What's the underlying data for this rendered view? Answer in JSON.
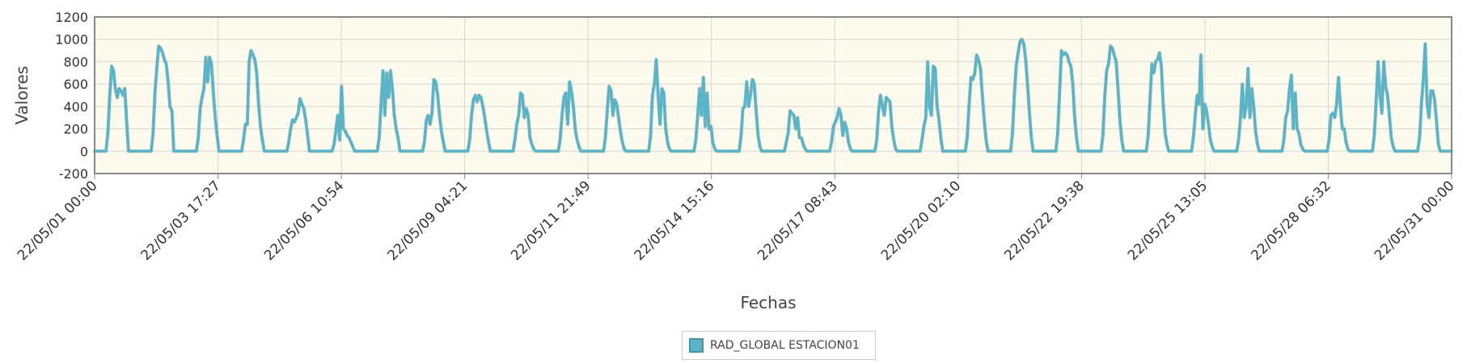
{
  "chart_data": {
    "type": "line",
    "title": "",
    "xlabel": "Fechas",
    "ylabel": "Valores",
    "ylim": [
      -200,
      1200
    ],
    "yticks": [
      "1200",
      "1000",
      "800",
      "600",
      "400",
      "200",
      "0",
      "-200"
    ],
    "xlim": [
      "22/05/01 00:00",
      "22/05/31 00:00"
    ],
    "xticks": [
      "22/05/01 00:00",
      "22/05/03 17:27",
      "22/05/06 10:54",
      "22/05/09 04:21",
      "22/05/11 21:49",
      "22/05/14 15:16",
      "22/05/17 08:43",
      "22/05/20 02:10",
      "22/05/22 19:38",
      "22/05/25 13:05",
      "22/05/28 06:32",
      "22/05/31 00:00"
    ],
    "grid": true,
    "legend_position": "bottom-center",
    "colors": {
      "series": "#5ab4c8",
      "plot_bg": "#fdfbee",
      "grid": "#d6d6d6",
      "frame": "#888888"
    },
    "series": [
      {
        "name": "RAD_GLOBAL ESTACION01",
        "daily": [
          {
            "date": "22/05/01",
            "values": [
              0,
              0,
              0,
              0,
              0,
              0,
              0,
              150,
              480,
              760,
              720,
              560,
              480,
              560,
              540,
              500,
              560,
              260,
              0,
              0,
              0,
              0,
              0,
              0
            ]
          },
          {
            "date": "22/05/02",
            "values": [
              0,
              0,
              0,
              0,
              0,
              0,
              0,
              150,
              520,
              740,
              940,
              920,
              880,
              820,
              780,
              620,
              400,
              360,
              0,
              0,
              0,
              0,
              0,
              0
            ]
          },
          {
            "date": "22/05/03",
            "values": [
              0,
              0,
              0,
              0,
              0,
              0,
              0,
              120,
              380,
              480,
              560,
              840,
              620,
              840,
              780,
              520,
              300,
              140,
              0,
              0,
              0,
              0,
              0,
              0
            ]
          },
          {
            "date": "22/05/04",
            "values": [
              0,
              0,
              0,
              0,
              0,
              0,
              0,
              100,
              240,
              240,
              800,
              900,
              860,
              820,
              700,
              420,
              220,
              100,
              0,
              0,
              0,
              0,
              0,
              0
            ]
          },
          {
            "date": "22/05/05",
            "values": [
              0,
              0,
              0,
              0,
              0,
              0,
              0,
              80,
              200,
              280,
              260,
              300,
              340,
              470,
              420,
              380,
              280,
              140,
              0,
              0,
              0,
              0,
              0,
              0
            ]
          },
          {
            "date": "22/05/06",
            "values": [
              0,
              0,
              0,
              0,
              0,
              0,
              0,
              60,
              180,
              320,
              100,
              580,
              200,
              180,
              140,
              120,
              80,
              40,
              0,
              0,
              0,
              0,
              0,
              0
            ]
          },
          {
            "date": "22/05/07",
            "values": [
              0,
              0,
              0,
              0,
              0,
              0,
              0,
              120,
              420,
              720,
              320,
              700,
              480,
              720,
              560,
              320,
              200,
              120,
              0,
              0,
              0,
              0,
              0,
              0
            ]
          },
          {
            "date": "22/05/08",
            "values": [
              0,
              0,
              0,
              0,
              0,
              0,
              0,
              80,
              280,
              320,
              240,
              340,
              640,
              620,
              500,
              320,
              180,
              80,
              0,
              0,
              0,
              0,
              0,
              0
            ]
          },
          {
            "date": "22/05/09",
            "values": [
              0,
              0,
              0,
              0,
              0,
              0,
              0,
              100,
              320,
              460,
              500,
              440,
              500,
              480,
              400,
              300,
              180,
              80,
              0,
              0,
              0,
              0,
              0,
              0
            ]
          },
          {
            "date": "22/05/10",
            "values": [
              0,
              0,
              0,
              0,
              0,
              0,
              0,
              100,
              240,
              320,
              520,
              500,
              300,
              380,
              320,
              120,
              60,
              20,
              0,
              0,
              0,
              0,
              0,
              0
            ]
          },
          {
            "date": "22/05/11",
            "values": [
              0,
              0,
              0,
              0,
              0,
              0,
              0,
              100,
              320,
              480,
              520,
              240,
              620,
              540,
              400,
              200,
              100,
              40,
              0,
              0,
              0,
              0,
              0,
              0
            ]
          },
          {
            "date": "22/05/12",
            "values": [
              0,
              0,
              0,
              0,
              0,
              0,
              0,
              120,
              360,
              580,
              540,
              320,
              460,
              420,
              300,
              180,
              80,
              20,
              0,
              0,
              0,
              0,
              0,
              0
            ]
          },
          {
            "date": "22/05/13",
            "values": [
              0,
              0,
              0,
              0,
              0,
              0,
              0,
              140,
              500,
              600,
              820,
              500,
              240,
              560,
              520,
              200,
              80,
              20,
              0,
              0,
              0,
              0,
              0,
              0
            ]
          },
          {
            "date": "22/05/14",
            "values": [
              0,
              0,
              0,
              0,
              0,
              0,
              0,
              100,
              320,
              560,
              320,
              660,
              220,
              520,
              200,
              220,
              80,
              20,
              0,
              0,
              0,
              0,
              0,
              0
            ]
          },
          {
            "date": "22/05/15",
            "values": [
              0,
              0,
              0,
              0,
              0,
              0,
              0,
              140,
              380,
              400,
              620,
              400,
              500,
              640,
              600,
              360,
              140,
              40,
              0,
              0,
              0,
              0,
              0,
              0
            ]
          },
          {
            "date": "22/05/16",
            "values": [
              0,
              0,
              0,
              0,
              0,
              0,
              0,
              80,
              160,
              360,
              340,
              320,
              200,
              300,
              120,
              120,
              60,
              20,
              0,
              0,
              0,
              0,
              0,
              0
            ]
          },
          {
            "date": "22/05/17",
            "values": [
              0,
              0,
              0,
              0,
              0,
              0,
              0,
              80,
              220,
              260,
              300,
              380,
              320,
              140,
              260,
              200,
              80,
              20,
              0,
              0,
              0,
              0,
              0,
              0
            ]
          },
          {
            "date": "22/05/18",
            "values": [
              0,
              0,
              0,
              0,
              0,
              0,
              0,
              100,
              360,
              500,
              400,
              320,
              480,
              460,
              440,
              220,
              100,
              20,
              0,
              0,
              0,
              0,
              0,
              0
            ]
          },
          {
            "date": "22/05/19",
            "values": [
              0,
              0,
              0,
              0,
              0,
              0,
              0,
              100,
              220,
              300,
              800,
              400,
              320,
              760,
              740,
              400,
              280,
              120,
              0,
              0,
              0,
              0,
              0,
              0
            ]
          },
          {
            "date": "22/05/20",
            "values": [
              0,
              0,
              0,
              0,
              0,
              0,
              0,
              120,
              420,
              660,
              640,
              700,
              860,
              820,
              740,
              500,
              280,
              100,
              0,
              0,
              0,
              0,
              0,
              0
            ]
          },
          {
            "date": "22/05/21",
            "values": [
              0,
              0,
              0,
              0,
              0,
              0,
              0,
              160,
              500,
              760,
              880,
              980,
              1000,
              960,
              820,
              600,
              340,
              120,
              0,
              0,
              0,
              0,
              0,
              0
            ]
          },
          {
            "date": "22/05/22",
            "values": [
              0,
              0,
              0,
              0,
              0,
              0,
              0,
              160,
              520,
              900,
              860,
              880,
              860,
              800,
              760,
              600,
              300,
              120,
              0,
              0,
              0,
              0,
              0,
              0
            ]
          },
          {
            "date": "22/05/23",
            "values": [
              0,
              0,
              0,
              0,
              0,
              0,
              0,
              140,
              500,
              720,
              780,
              940,
              920,
              860,
              800,
              560,
              280,
              100,
              0,
              0,
              0,
              0,
              0,
              0
            ]
          },
          {
            "date": "22/05/24",
            "values": [
              0,
              0,
              0,
              0,
              0,
              0,
              0,
              140,
              460,
              780,
              700,
              800,
              820,
              880,
              760,
              420,
              160,
              60,
              0,
              0,
              0,
              0,
              0,
              0
            ]
          },
          {
            "date": "22/05/25",
            "values": [
              0,
              0,
              0,
              0,
              0,
              0,
              0,
              120,
              320,
              500,
              420,
              860,
              200,
              420,
              360,
              240,
              100,
              40,
              0,
              0,
              0,
              0,
              0,
              0
            ]
          },
          {
            "date": "22/05/26",
            "values": [
              0,
              0,
              0,
              0,
              0,
              0,
              0,
              100,
              300,
              600,
              300,
              400,
              740,
              300,
              560,
              400,
              180,
              60,
              0,
              0,
              0,
              0,
              0,
              0
            ]
          },
          {
            "date": "22/05/27",
            "values": [
              0,
              0,
              0,
              0,
              0,
              0,
              0,
              100,
              300,
              360,
              560,
              680,
              200,
              520,
              200,
              160,
              60,
              20,
              0,
              0,
              0,
              0,
              0,
              0
            ]
          },
          {
            "date": "22/05/28",
            "values": [
              0,
              0,
              0,
              0,
              0,
              0,
              0,
              100,
              320,
              340,
              300,
              420,
              660,
              400,
              200,
              200,
              80,
              20,
              0,
              0,
              0,
              0,
              0,
              0
            ]
          },
          {
            "date": "22/05/29",
            "values": [
              0,
              0,
              0,
              0,
              0,
              0,
              0,
              140,
              460,
              800,
              500,
              340,
              800,
              580,
              500,
              320,
              120,
              40,
              0,
              0,
              0,
              0,
              0,
              0
            ]
          },
          {
            "date": "22/05/30",
            "values": [
              0,
              0,
              0,
              0,
              0,
              0,
              0,
              120,
              420,
              640,
              960,
              420,
              300,
              540,
              540,
              460,
              260,
              60,
              0,
              0,
              0,
              0,
              0,
              0
            ]
          }
        ]
      }
    ]
  }
}
